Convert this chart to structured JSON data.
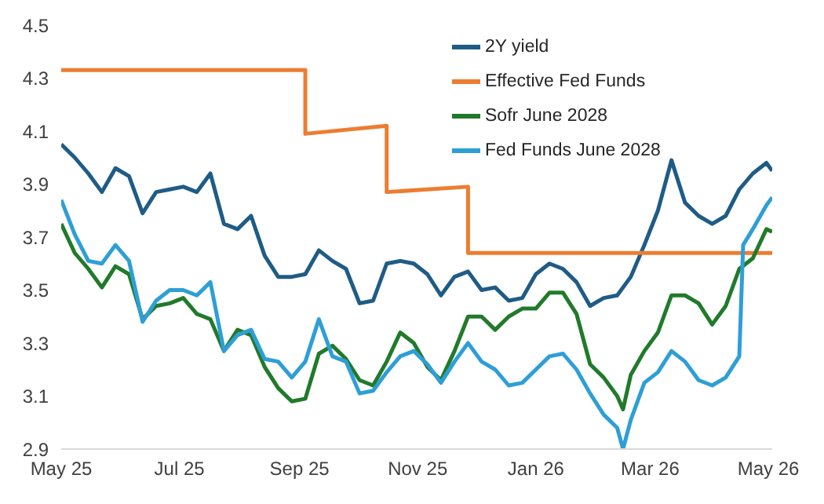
{
  "chart_data": {
    "type": "line",
    "xlim": [
      "2025-05-01",
      "2026-05-03"
    ],
    "xticks": [
      {
        "value": "2025-05-01",
        "label": "May 25"
      },
      {
        "value": "2025-07-01",
        "label": "Jul 25"
      },
      {
        "value": "2025-09-01",
        "label": "Sep 25"
      },
      {
        "value": "2025-11-01",
        "label": "Nov 25"
      },
      {
        "value": "2026-01-01",
        "label": "Jan 26"
      },
      {
        "value": "2026-03-01",
        "label": "Mar 26"
      },
      {
        "value": "2026-05-01",
        "label": "May 26"
      }
    ],
    "ylim": [
      2.9,
      4.5
    ],
    "yticks": [
      2.9,
      3.1,
      3.3,
      3.5,
      3.7,
      3.9,
      4.1,
      4.3,
      4.5
    ],
    "grid": false,
    "legend": "top right",
    "marker": "none",
    "line_style": "solid",
    "series": [
      {
        "name": "2Y yield",
        "color": "#1f5c85",
        "x": [
          "2025-05-01",
          "2025-05-08",
          "2025-05-15",
          "2025-05-22",
          "2025-05-29",
          "2025-06-05",
          "2025-06-12",
          "2025-06-19",
          "2025-06-26",
          "2025-07-03",
          "2025-07-10",
          "2025-07-17",
          "2025-07-24",
          "2025-07-31",
          "2025-08-07",
          "2025-08-14",
          "2025-08-21",
          "2025-08-28",
          "2025-09-04",
          "2025-09-11",
          "2025-09-18",
          "2025-09-25",
          "2025-10-02",
          "2025-10-09",
          "2025-10-16",
          "2025-10-23",
          "2025-10-30",
          "2025-11-06",
          "2025-11-13",
          "2025-11-20",
          "2025-11-27",
          "2025-12-04",
          "2025-12-11",
          "2025-12-18",
          "2025-12-25",
          "2026-01-01",
          "2026-01-08",
          "2026-01-15",
          "2026-01-22",
          "2026-01-29",
          "2026-02-05",
          "2026-02-12",
          "2026-02-19",
          "2026-02-26",
          "2026-03-05",
          "2026-03-12",
          "2026-03-19",
          "2026-03-26",
          "2026-04-02",
          "2026-04-09",
          "2026-04-16",
          "2026-04-23",
          "2026-04-30",
          "2026-05-03"
        ],
        "values": [
          4.05,
          4.0,
          3.94,
          3.87,
          3.96,
          3.93,
          3.79,
          3.87,
          3.88,
          3.89,
          3.87,
          3.94,
          3.75,
          3.73,
          3.78,
          3.63,
          3.55,
          3.55,
          3.56,
          3.65,
          3.61,
          3.58,
          3.45,
          3.46,
          3.6,
          3.61,
          3.6,
          3.56,
          3.48,
          3.55,
          3.57,
          3.5,
          3.51,
          3.46,
          3.47,
          3.56,
          3.6,
          3.58,
          3.53,
          3.44,
          3.47,
          3.48,
          3.55,
          3.67,
          3.8,
          3.99,
          3.83,
          3.78,
          3.75,
          3.78,
          3.88,
          3.94,
          3.98,
          3.95
        ]
      },
      {
        "name": "Effective Fed Funds",
        "color": "#ed7d31",
        "x": [
          "2025-05-01",
          "2025-09-04",
          "2025-09-04",
          "2025-10-16",
          "2025-10-16",
          "2025-11-27",
          "2025-11-27",
          "2026-05-03"
        ],
        "values": [
          4.33,
          4.33,
          4.09,
          4.12,
          3.87,
          3.89,
          3.64,
          3.64
        ]
      },
      {
        "name": "Sofr June 2028",
        "color": "#217a2b",
        "x": [
          "2025-05-01",
          "2025-05-08",
          "2025-05-15",
          "2025-05-22",
          "2025-05-29",
          "2025-06-05",
          "2025-06-12",
          "2025-06-19",
          "2025-06-26",
          "2025-07-03",
          "2025-07-10",
          "2025-07-17",
          "2025-07-24",
          "2025-07-31",
          "2025-08-07",
          "2025-08-14",
          "2025-08-21",
          "2025-08-28",
          "2025-09-04",
          "2025-09-11",
          "2025-09-18",
          "2025-09-25",
          "2025-10-02",
          "2025-10-09",
          "2025-10-16",
          "2025-10-23",
          "2025-10-30",
          "2025-11-06",
          "2025-11-13",
          "2025-11-20",
          "2025-11-27",
          "2025-12-04",
          "2025-12-11",
          "2025-12-18",
          "2025-12-25",
          "2026-01-01",
          "2026-01-08",
          "2026-01-15",
          "2026-01-22",
          "2026-01-29",
          "2026-02-05",
          "2026-02-12",
          "2026-02-15",
          "2026-02-19",
          "2026-02-26",
          "2026-03-05",
          "2026-03-12",
          "2026-03-19",
          "2026-03-26",
          "2026-04-02",
          "2026-04-09",
          "2026-04-16",
          "2026-04-23",
          "2026-04-30",
          "2026-05-03"
        ],
        "values": [
          3.75,
          3.64,
          3.58,
          3.51,
          3.59,
          3.56,
          3.39,
          3.44,
          3.45,
          3.47,
          3.41,
          3.39,
          3.27,
          3.35,
          3.33,
          3.21,
          3.13,
          3.08,
          3.09,
          3.26,
          3.29,
          3.24,
          3.16,
          3.14,
          3.23,
          3.34,
          3.3,
          3.21,
          3.16,
          3.27,
          3.4,
          3.4,
          3.35,
          3.4,
          3.43,
          3.43,
          3.49,
          3.49,
          3.41,
          3.22,
          3.17,
          3.1,
          3.05,
          3.18,
          3.27,
          3.34,
          3.48,
          3.48,
          3.45,
          3.37,
          3.44,
          3.58,
          3.62,
          3.73,
          3.72
        ]
      },
      {
        "name": "Fed Funds June 2028",
        "color": "#2e9fd6",
        "x": [
          "2025-05-01",
          "2025-05-08",
          "2025-05-15",
          "2025-05-22",
          "2025-05-29",
          "2025-06-05",
          "2025-06-12",
          "2025-06-19",
          "2025-06-26",
          "2025-07-03",
          "2025-07-10",
          "2025-07-17",
          "2025-07-24",
          "2025-07-31",
          "2025-08-07",
          "2025-08-14",
          "2025-08-21",
          "2025-08-28",
          "2025-09-04",
          "2025-09-11",
          "2025-09-18",
          "2025-09-25",
          "2025-10-02",
          "2025-10-09",
          "2025-10-16",
          "2025-10-23",
          "2025-10-30",
          "2025-11-06",
          "2025-11-13",
          "2025-11-20",
          "2025-11-27",
          "2025-12-04",
          "2025-12-11",
          "2025-12-18",
          "2025-12-25",
          "2026-01-01",
          "2026-01-08",
          "2026-01-15",
          "2026-01-22",
          "2026-01-29",
          "2026-02-05",
          "2026-02-12",
          "2026-02-15",
          "2026-02-19",
          "2026-02-26",
          "2026-03-05",
          "2026-03-12",
          "2026-03-19",
          "2026-03-26",
          "2026-04-02",
          "2026-04-09",
          "2026-04-16",
          "2026-04-18",
          "2026-04-23",
          "2026-04-30",
          "2026-05-03"
        ],
        "values": [
          3.84,
          3.71,
          3.61,
          3.6,
          3.67,
          3.61,
          3.38,
          3.46,
          3.5,
          3.5,
          3.48,
          3.53,
          3.27,
          3.33,
          3.35,
          3.24,
          3.23,
          3.17,
          3.23,
          3.39,
          3.25,
          3.23,
          3.11,
          3.12,
          3.19,
          3.25,
          3.27,
          3.22,
          3.15,
          3.23,
          3.3,
          3.23,
          3.2,
          3.14,
          3.15,
          3.2,
          3.25,
          3.26,
          3.2,
          3.11,
          3.03,
          2.98,
          2.9,
          3.01,
          3.15,
          3.19,
          3.27,
          3.23,
          3.16,
          3.14,
          3.17,
          3.25,
          3.67,
          3.73,
          3.82,
          3.85
        ]
      }
    ]
  }
}
